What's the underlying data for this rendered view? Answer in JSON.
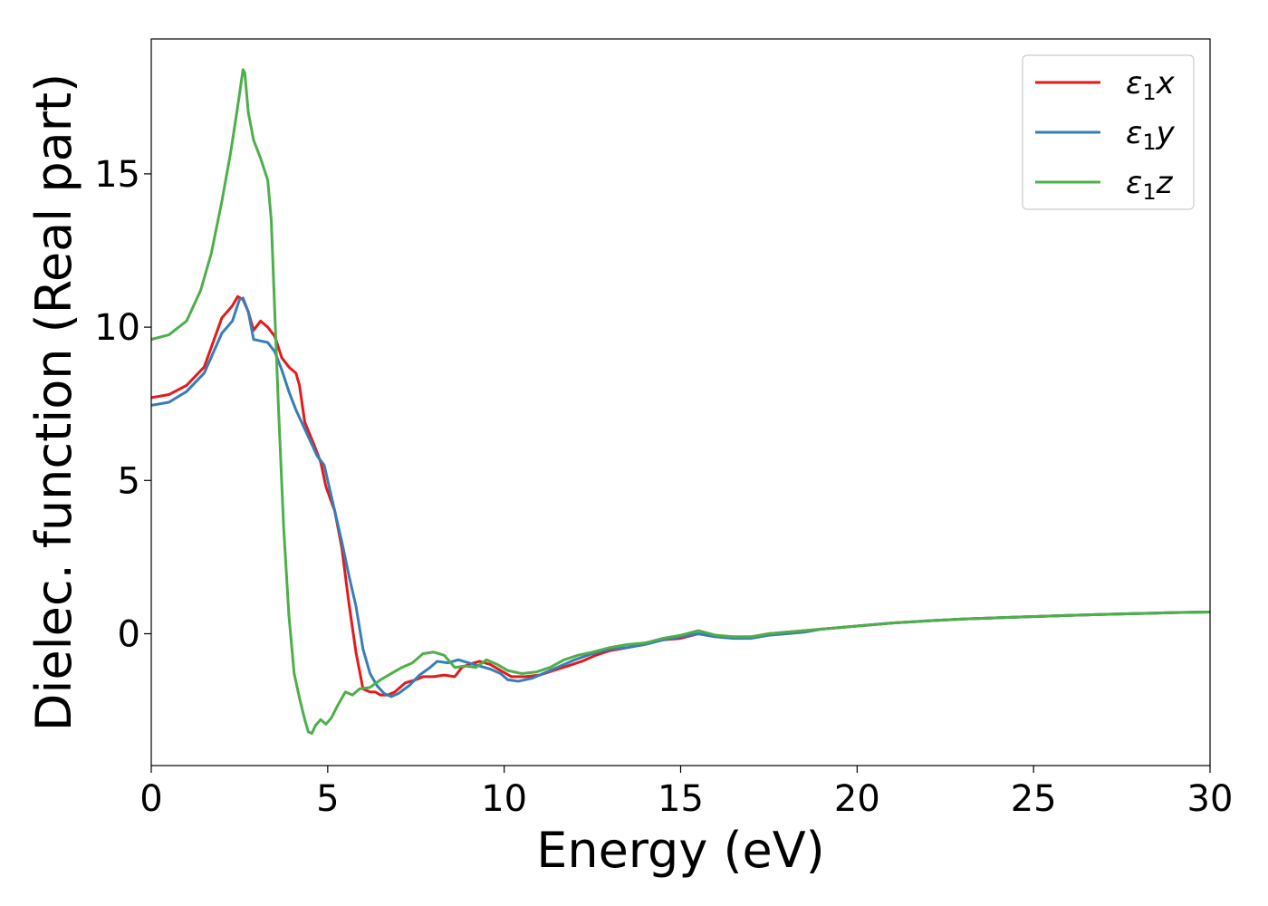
{
  "chart_data": {
    "type": "line",
    "title": "",
    "xlabel": "Energy (eV)",
    "ylabel": "Dielec. function (Real part)",
    "xlim": [
      0,
      30
    ],
    "ylim": [
      -4.3,
      19.4
    ],
    "xticks": [
      0,
      5,
      10,
      15,
      20,
      25,
      30
    ],
    "yticks": [
      0,
      5,
      10,
      15
    ],
    "grid": false,
    "legend_position": "top-right",
    "colors": {
      "x": "#e41a1c",
      "y": "#377eb8",
      "z": "#4daf4a"
    },
    "series": [
      {
        "name": "ε₁x",
        "legend": {
          "base": "ε",
          "sub": "1",
          "var": "x"
        },
        "color": "#e41a1c",
        "points": [
          [
            0,
            7.7
          ],
          [
            0.5,
            7.8
          ],
          [
            1.0,
            8.1
          ],
          [
            1.5,
            8.7
          ],
          [
            2.0,
            10.3
          ],
          [
            2.3,
            10.7
          ],
          [
            2.45,
            11.0
          ],
          [
            2.6,
            10.9
          ],
          [
            2.75,
            10.5
          ],
          [
            2.9,
            9.9
          ],
          [
            3.1,
            10.2
          ],
          [
            3.3,
            10.0
          ],
          [
            3.5,
            9.7
          ],
          [
            3.7,
            9.0
          ],
          [
            3.9,
            8.7
          ],
          [
            4.1,
            8.5
          ],
          [
            4.2,
            8.1
          ],
          [
            4.35,
            6.9
          ],
          [
            4.6,
            6.2
          ],
          [
            4.8,
            5.6
          ],
          [
            4.95,
            4.8
          ],
          [
            5.2,
            4.0
          ],
          [
            5.4,
            2.8
          ],
          [
            5.6,
            1.0
          ],
          [
            5.8,
            -0.6
          ],
          [
            6.0,
            -1.8
          ],
          [
            6.2,
            -1.9
          ],
          [
            6.35,
            -1.9
          ],
          [
            6.5,
            -2.0
          ],
          [
            6.7,
            -2.0
          ],
          [
            6.9,
            -1.9
          ],
          [
            7.2,
            -1.6
          ],
          [
            7.5,
            -1.5
          ],
          [
            7.7,
            -1.4
          ],
          [
            8.0,
            -1.4
          ],
          [
            8.3,
            -1.35
          ],
          [
            8.6,
            -1.4
          ],
          [
            8.8,
            -1.1
          ],
          [
            9.0,
            -1.0
          ],
          [
            9.3,
            -0.9
          ],
          [
            9.6,
            -1.0
          ],
          [
            9.9,
            -1.2
          ],
          [
            10.2,
            -1.4
          ],
          [
            10.6,
            -1.4
          ],
          [
            11.0,
            -1.35
          ],
          [
            11.4,
            -1.2
          ],
          [
            11.8,
            -1.05
          ],
          [
            12.2,
            -0.9
          ],
          [
            12.6,
            -0.7
          ],
          [
            13.0,
            -0.55
          ],
          [
            13.5,
            -0.45
          ],
          [
            14.0,
            -0.3
          ],
          [
            14.5,
            -0.2
          ],
          [
            15.0,
            -0.15
          ],
          [
            15.5,
            0.0
          ],
          [
            16.0,
            -0.1
          ],
          [
            16.5,
            -0.1
          ],
          [
            17.0,
            -0.1
          ],
          [
            17.5,
            0.0
          ],
          [
            18.0,
            0.05
          ],
          [
            18.5,
            0.1
          ],
          [
            19.0,
            0.15
          ],
          [
            20.0,
            0.25
          ],
          [
            21.0,
            0.35
          ],
          [
            22.0,
            0.42
          ],
          [
            23.0,
            0.48
          ],
          [
            24.0,
            0.52
          ],
          [
            25.0,
            0.56
          ],
          [
            26.0,
            0.6
          ],
          [
            27.0,
            0.63
          ],
          [
            28.0,
            0.66
          ],
          [
            29.0,
            0.69
          ],
          [
            30.0,
            0.71
          ]
        ]
      },
      {
        "name": "ε₁y",
        "legend": {
          "base": "ε",
          "sub": "1",
          "var": "y"
        },
        "color": "#377eb8",
        "points": [
          [
            0,
            7.45
          ],
          [
            0.5,
            7.55
          ],
          [
            1.0,
            7.9
          ],
          [
            1.5,
            8.5
          ],
          [
            2.0,
            9.8
          ],
          [
            2.3,
            10.2
          ],
          [
            2.5,
            10.9
          ],
          [
            2.6,
            10.95
          ],
          [
            2.75,
            10.5
          ],
          [
            2.9,
            9.6
          ],
          [
            3.1,
            9.55
          ],
          [
            3.3,
            9.5
          ],
          [
            3.5,
            9.2
          ],
          [
            3.7,
            8.6
          ],
          [
            3.9,
            7.9
          ],
          [
            4.1,
            7.3
          ],
          [
            4.3,
            6.8
          ],
          [
            4.5,
            6.3
          ],
          [
            4.7,
            5.8
          ],
          [
            4.9,
            5.5
          ],
          [
            5.0,
            5.0
          ],
          [
            5.2,
            4.0
          ],
          [
            5.4,
            3.0
          ],
          [
            5.6,
            1.9
          ],
          [
            5.8,
            0.9
          ],
          [
            6.0,
            -0.5
          ],
          [
            6.2,
            -1.3
          ],
          [
            6.4,
            -1.7
          ],
          [
            6.6,
            -1.95
          ],
          [
            6.8,
            -2.05
          ],
          [
            7.0,
            -1.95
          ],
          [
            7.3,
            -1.7
          ],
          [
            7.6,
            -1.35
          ],
          [
            7.9,
            -1.1
          ],
          [
            8.1,
            -0.9
          ],
          [
            8.4,
            -0.95
          ],
          [
            8.7,
            -0.85
          ],
          [
            9.0,
            -0.95
          ],
          [
            9.3,
            -1.05
          ],
          [
            9.6,
            -1.15
          ],
          [
            9.9,
            -1.3
          ],
          [
            10.1,
            -1.5
          ],
          [
            10.4,
            -1.55
          ],
          [
            10.8,
            -1.45
          ],
          [
            11.2,
            -1.25
          ],
          [
            11.6,
            -1.05
          ],
          [
            12.0,
            -0.85
          ],
          [
            12.5,
            -0.65
          ],
          [
            13.0,
            -0.5
          ],
          [
            13.5,
            -0.45
          ],
          [
            14.0,
            -0.35
          ],
          [
            14.5,
            -0.2
          ],
          [
            15.0,
            -0.1
          ],
          [
            15.5,
            0.0
          ],
          [
            16.0,
            -0.1
          ],
          [
            16.5,
            -0.15
          ],
          [
            17.0,
            -0.15
          ],
          [
            17.5,
            -0.05
          ],
          [
            18.0,
            0.0
          ],
          [
            18.5,
            0.05
          ],
          [
            19.0,
            0.15
          ],
          [
            20.0,
            0.25
          ],
          [
            21.0,
            0.35
          ],
          [
            22.0,
            0.42
          ],
          [
            23.0,
            0.48
          ],
          [
            24.0,
            0.52
          ],
          [
            25.0,
            0.56
          ],
          [
            26.0,
            0.6
          ],
          [
            27.0,
            0.63
          ],
          [
            28.0,
            0.66
          ],
          [
            29.0,
            0.69
          ],
          [
            30.0,
            0.71
          ]
        ]
      },
      {
        "name": "ε₁z",
        "legend": {
          "base": "ε",
          "sub": "1",
          "var": "z"
        },
        "color": "#4daf4a",
        "points": [
          [
            0,
            9.6
          ],
          [
            0.5,
            9.75
          ],
          [
            1.0,
            10.2
          ],
          [
            1.4,
            11.2
          ],
          [
            1.7,
            12.4
          ],
          [
            2.0,
            14.1
          ],
          [
            2.25,
            15.7
          ],
          [
            2.45,
            17.2
          ],
          [
            2.55,
            18.0
          ],
          [
            2.6,
            18.4
          ],
          [
            2.65,
            18.3
          ],
          [
            2.75,
            17.0
          ],
          [
            2.9,
            16.1
          ],
          [
            3.1,
            15.5
          ],
          [
            3.3,
            14.8
          ],
          [
            3.4,
            13.5
          ],
          [
            3.5,
            10.5
          ],
          [
            3.6,
            7.5
          ],
          [
            3.75,
            3.5
          ],
          [
            3.9,
            0.6
          ],
          [
            4.05,
            -1.3
          ],
          [
            4.2,
            -2.1
          ],
          [
            4.35,
            -2.8
          ],
          [
            4.45,
            -3.2
          ],
          [
            4.55,
            -3.25
          ],
          [
            4.65,
            -3.0
          ],
          [
            4.8,
            -2.8
          ],
          [
            4.95,
            -2.95
          ],
          [
            5.1,
            -2.75
          ],
          [
            5.3,
            -2.3
          ],
          [
            5.5,
            -1.9
          ],
          [
            5.7,
            -2.0
          ],
          [
            5.9,
            -1.8
          ],
          [
            6.2,
            -1.75
          ],
          [
            6.5,
            -1.5
          ],
          [
            6.8,
            -1.3
          ],
          [
            7.1,
            -1.1
          ],
          [
            7.4,
            -0.95
          ],
          [
            7.7,
            -0.65
          ],
          [
            8.0,
            -0.6
          ],
          [
            8.3,
            -0.7
          ],
          [
            8.6,
            -1.1
          ],
          [
            8.9,
            -1.05
          ],
          [
            9.2,
            -1.1
          ],
          [
            9.5,
            -0.85
          ],
          [
            9.8,
            -1.0
          ],
          [
            10.1,
            -1.2
          ],
          [
            10.5,
            -1.3
          ],
          [
            10.9,
            -1.25
          ],
          [
            11.3,
            -1.1
          ],
          [
            11.7,
            -0.85
          ],
          [
            12.1,
            -0.7
          ],
          [
            12.5,
            -0.6
          ],
          [
            13.0,
            -0.45
          ],
          [
            13.5,
            -0.35
          ],
          [
            14.0,
            -0.3
          ],
          [
            14.5,
            -0.15
          ],
          [
            15.0,
            -0.05
          ],
          [
            15.5,
            0.1
          ],
          [
            16.0,
            -0.05
          ],
          [
            16.5,
            -0.1
          ],
          [
            17.0,
            -0.1
          ],
          [
            17.5,
            0.0
          ],
          [
            18.0,
            0.05
          ],
          [
            18.5,
            0.1
          ],
          [
            19.0,
            0.15
          ],
          [
            20.0,
            0.25
          ],
          [
            21.0,
            0.35
          ],
          [
            22.0,
            0.42
          ],
          [
            23.0,
            0.48
          ],
          [
            24.0,
            0.52
          ],
          [
            25.0,
            0.56
          ],
          [
            26.0,
            0.6
          ],
          [
            27.0,
            0.63
          ],
          [
            28.0,
            0.66
          ],
          [
            29.0,
            0.69
          ],
          [
            30.0,
            0.71
          ]
        ]
      }
    ]
  }
}
